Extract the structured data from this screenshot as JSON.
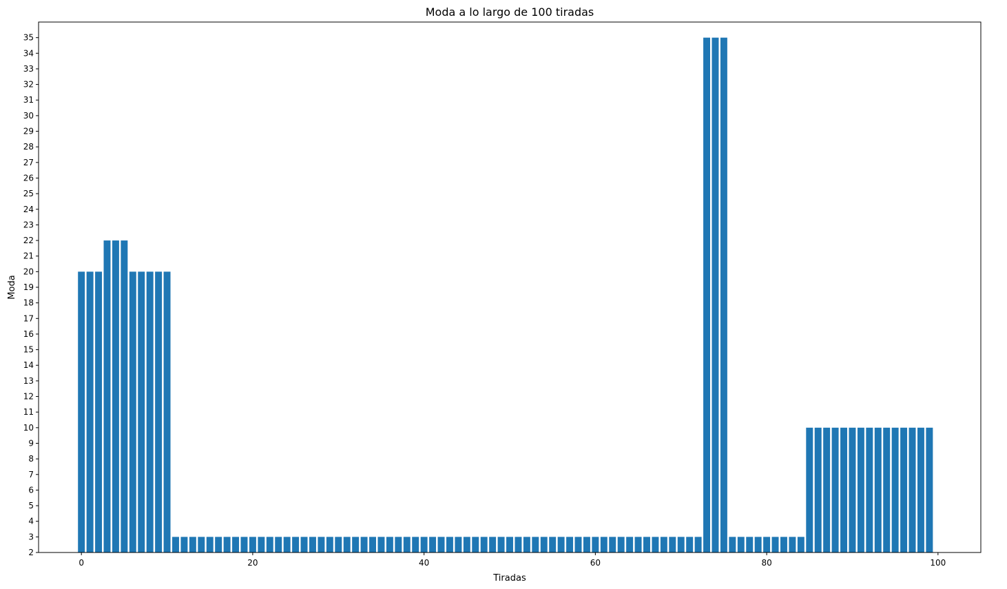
{
  "chart_data": {
    "type": "bar",
    "title": "Moda a lo largo de 100 tiradas",
    "xlabel": "Tiradas",
    "ylabel": "Moda",
    "xlim": [
      -5,
      105
    ],
    "ylim": [
      2,
      36
    ],
    "x_ticks": [
      0,
      20,
      40,
      60,
      80,
      100
    ],
    "y_ticks": [
      2,
      3,
      4,
      5,
      6,
      7,
      8,
      9,
      10,
      11,
      12,
      13,
      14,
      15,
      16,
      17,
      18,
      19,
      20,
      21,
      22,
      23,
      24,
      25,
      26,
      27,
      28,
      29,
      30,
      31,
      32,
      33,
      34,
      35
    ],
    "grid": false,
    "bar_color": "#1f77b4",
    "x": [
      0,
      1,
      2,
      3,
      4,
      5,
      6,
      7,
      8,
      9,
      10,
      11,
      12,
      13,
      14,
      15,
      16,
      17,
      18,
      19,
      20,
      21,
      22,
      23,
      24,
      25,
      26,
      27,
      28,
      29,
      30,
      31,
      32,
      33,
      34,
      35,
      36,
      37,
      38,
      39,
      40,
      41,
      42,
      43,
      44,
      45,
      46,
      47,
      48,
      49,
      50,
      51,
      52,
      53,
      54,
      55,
      56,
      57,
      58,
      59,
      60,
      61,
      62,
      63,
      64,
      65,
      66,
      67,
      68,
      69,
      70,
      71,
      72,
      73,
      74,
      75,
      76,
      77,
      78,
      79,
      80,
      81,
      82,
      83,
      84,
      85,
      86,
      87,
      88,
      89,
      90,
      91,
      92,
      93,
      94,
      95,
      96,
      97,
      98,
      99
    ],
    "values": [
      20,
      20,
      20,
      22,
      22,
      22,
      20,
      20,
      20,
      20,
      20,
      3,
      3,
      3,
      3,
      3,
      3,
      3,
      3,
      3,
      3,
      3,
      3,
      3,
      3,
      3,
      3,
      3,
      3,
      3,
      3,
      3,
      3,
      3,
      3,
      3,
      3,
      3,
      3,
      3,
      3,
      3,
      3,
      3,
      3,
      3,
      3,
      3,
      3,
      3,
      3,
      3,
      3,
      3,
      3,
      3,
      3,
      3,
      3,
      3,
      3,
      3,
      3,
      3,
      3,
      3,
      3,
      3,
      3,
      3,
      3,
      3,
      3,
      35,
      35,
      35,
      3,
      3,
      3,
      3,
      3,
      3,
      3,
      3,
      3,
      10,
      10,
      10,
      10,
      10,
      10,
      10,
      10,
      10,
      10,
      10,
      10,
      10,
      10,
      10
    ]
  }
}
